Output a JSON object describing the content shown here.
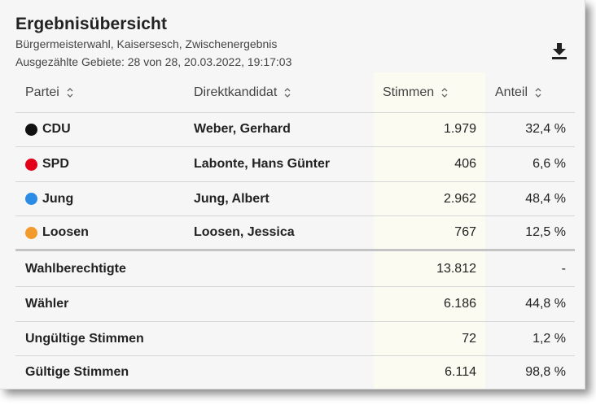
{
  "header": {
    "title": "Ergebnisübersicht",
    "subtitle": "Bürgermeisterwahl, Kaisersesch, Zwischenergebnis",
    "meta": "Ausgezählte Gebiete: 28 von 28, 20.03.2022, 19:17:03",
    "download_icon": "download-icon"
  },
  "table": {
    "columns": {
      "party": "Partei",
      "candidate": "Direktkandidat",
      "votes": "Stimmen",
      "share": "Anteil"
    },
    "rows": [
      {
        "party": "CDU",
        "color": "#111111",
        "candidate": "Weber, Gerhard",
        "votes": "1.979",
        "share": "32,4 %"
      },
      {
        "party": "SPD",
        "color": "#e3001b",
        "candidate": "Labonte, Hans Günter",
        "votes": "406",
        "share": "6,6 %"
      },
      {
        "party": "Jung",
        "color": "#2b8ce6",
        "candidate": "Jung, Albert",
        "votes": "2.962",
        "share": "48,4 %"
      },
      {
        "party": "Loosen",
        "color": "#f39a2c",
        "candidate": "Loosen, Jessica",
        "votes": "767",
        "share": "12,5 %"
      }
    ],
    "summary": [
      {
        "label": "Wahlberechtigte",
        "votes": "13.812",
        "share": "-"
      },
      {
        "label": "Wähler",
        "votes": "6.186",
        "share": "44,8 %"
      },
      {
        "label": "Ungültige Stimmen",
        "votes": "72",
        "share": "1,2 %"
      },
      {
        "label": "Gültige Stimmen",
        "votes": "6.114",
        "share": "98,8 %"
      }
    ]
  }
}
